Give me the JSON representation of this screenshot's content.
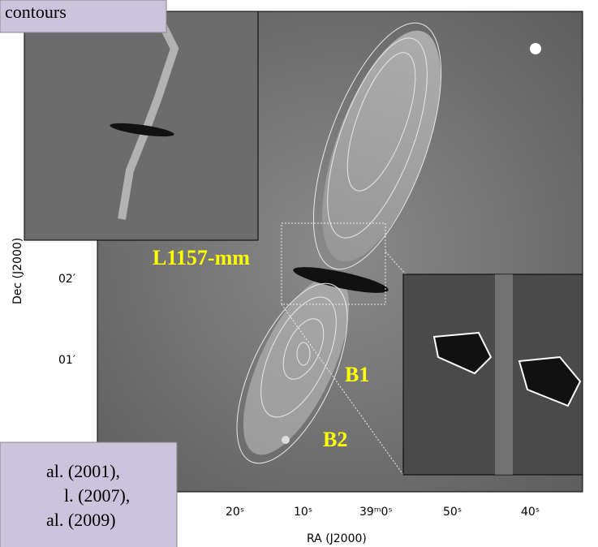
{
  "header": {
    "title": "contours"
  },
  "labels": {
    "source": "L1157-mm",
    "b1": "B1",
    "b2": "B2"
  },
  "axes": {
    "y_label": "Dec (J2000)",
    "x_label": "RA (J2000)",
    "y_ticks": [
      "02′",
      "01′"
    ],
    "x_ticks": [
      "20ˢ",
      "10ˢ",
      "39ᵐ0ˢ",
      "50ˢ",
      "40ˢ"
    ]
  },
  "caption": {
    "lines": [
      "al. (2001),",
      "l. (2007),",
      "al. (2009)"
    ]
  }
}
